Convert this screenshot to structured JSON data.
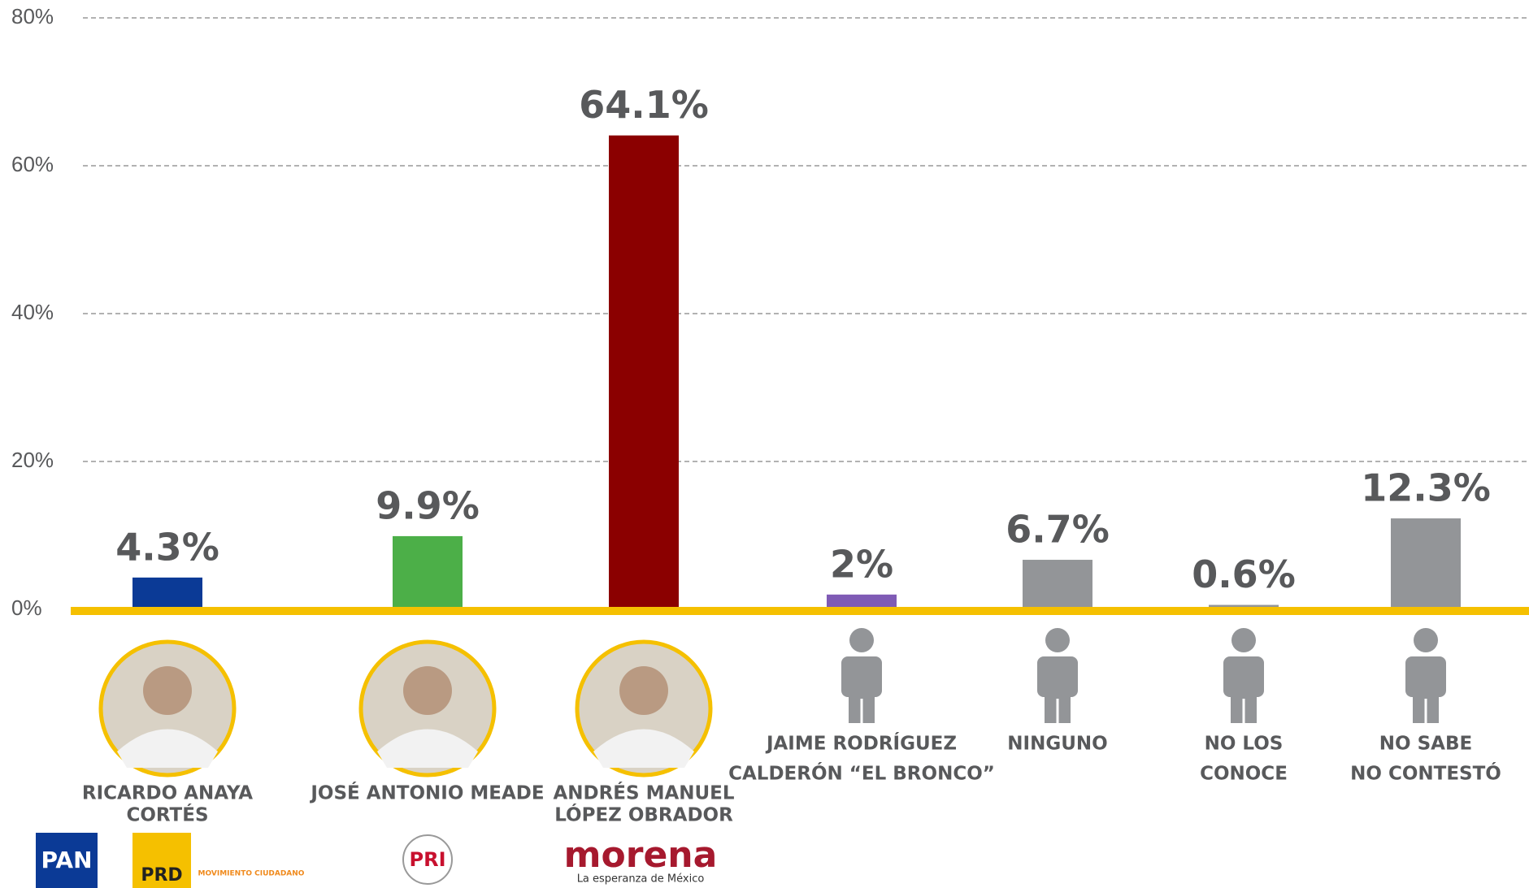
{
  "chart_data": {
    "type": "bar",
    "categories": [
      [
        "RICARDO ANAYA",
        "CORTÉS"
      ],
      [
        "JOSÉ ANTONIO MEADE"
      ],
      [
        "ANDRÉS MANUEL",
        "LÓPEZ OBRADOR"
      ],
      [
        "JAIME RODRÍGUEZ",
        "CALDERÓN “EL BRONCO”"
      ],
      [
        "NINGUNO"
      ],
      [
        "NO LOS",
        "CONOCE"
      ],
      [
        "NO SABE",
        "NO CONTESTÓ"
      ]
    ],
    "values": [
      4.3,
      9.9,
      64.1,
      2,
      6.7,
      0.6,
      12.3
    ],
    "value_labels": [
      "4.3%",
      "9.9%",
      "64.1%",
      "2%",
      "6.7%",
      "0.6%",
      "12.3%"
    ],
    "colors": [
      "#0b3a96",
      "#4caf48",
      "#8b0000",
      "#7f5bb5",
      "#939598",
      "#939598",
      "#939598"
    ],
    "party_logos": [
      [
        "PAN",
        "PRD",
        "MOVIMIENTO CIUDADANO"
      ],
      [
        "PRI"
      ],
      [
        "morena",
        "La esperanza de México"
      ],
      [],
      [],
      [],
      []
    ],
    "ylim": [
      0,
      80
    ],
    "yticks": [
      {
        "value": 0,
        "label": "0%"
      },
      {
        "value": 20,
        "label": "20%"
      },
      {
        "value": 40,
        "label": "40%"
      },
      {
        "value": 60,
        "label": "60%"
      },
      {
        "value": 80,
        "label": "80%"
      }
    ],
    "grid": true
  }
}
